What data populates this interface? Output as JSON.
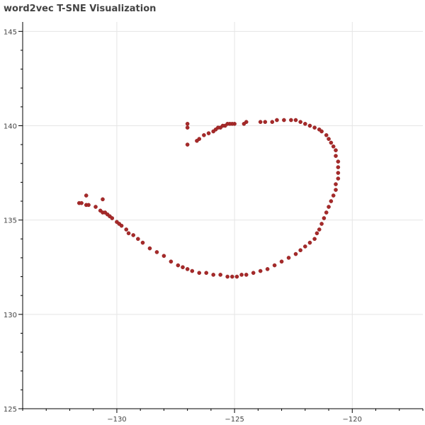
{
  "chart_data": {
    "type": "scatter",
    "title": "word2vec T-SNE Visualization",
    "xlabel": "",
    "ylabel": "",
    "xlim": [
      -134,
      -117
    ],
    "ylim": [
      125,
      145.5
    ],
    "x_ticks": [
      -130,
      -125,
      -120
    ],
    "y_ticks": [
      125,
      130,
      135,
      140,
      145
    ],
    "grid": true,
    "marker_color": "#a52a2a",
    "x": [
      -131.6,
      -131.5,
      -131.3,
      -131.2,
      -130.9,
      -130.7,
      -130.6,
      -130.5,
      -130.4,
      -130.3,
      -130.2,
      -130.0,
      -129.9,
      -129.8,
      -129.6,
      -129.5,
      -129.3,
      -129.1,
      -128.9,
      -128.6,
      -128.3,
      -128.0,
      -127.7,
      -127.4,
      -127.2,
      -127.0,
      -126.8,
      -126.5,
      -126.2,
      -125.9,
      -125.6,
      -125.3,
      -125.1,
      -124.9,
      -124.7,
      -124.5,
      -124.2,
      -123.9,
      -123.6,
      -123.3,
      -123.0,
      -122.7,
      -122.4,
      -122.2,
      -122.0,
      -121.8,
      -121.6,
      -121.5,
      -121.4,
      -121.3,
      -121.2,
      -121.1,
      -121.0,
      -120.9,
      -120.8,
      -120.7,
      -120.7,
      -120.6,
      -120.6,
      -120.6,
      -120.6,
      -120.7,
      -120.7,
      -120.8,
      -120.9,
      -121.0,
      -121.1,
      -121.3,
      -121.4,
      -121.6,
      -121.8,
      -122.0,
      -122.2,
      -122.4,
      -122.6,
      -122.9,
      -123.2,
      -123.4,
      -123.7,
      -123.9,
      -124.5,
      -124.6,
      -125.0,
      -125.1,
      -125.2,
      -125.3,
      -125.4,
      -125.5,
      -125.6,
      -125.7,
      -125.8,
      -125.9,
      -126.1,
      -126.3,
      -126.5,
      -126.6,
      -127.0,
      -127.0,
      -127.0,
      -131.3,
      -130.6
    ],
    "y": [
      135.9,
      135.9,
      135.8,
      135.8,
      135.7,
      135.5,
      135.4,
      135.4,
      135.3,
      135.2,
      135.1,
      134.9,
      134.8,
      134.7,
      134.5,
      134.3,
      134.2,
      134.0,
      133.8,
      133.5,
      133.3,
      133.1,
      132.8,
      132.6,
      132.5,
      132.4,
      132.3,
      132.2,
      132.2,
      132.1,
      132.1,
      132.0,
      132.0,
      132.0,
      132.1,
      132.1,
      132.2,
      132.3,
      132.4,
      132.6,
      132.8,
      133.0,
      133.2,
      133.4,
      133.6,
      133.8,
      134.0,
      134.3,
      134.5,
      134.8,
      135.1,
      135.4,
      135.7,
      136.0,
      136.3,
      136.6,
      136.9,
      137.2,
      137.5,
      137.8,
      138.1,
      138.4,
      138.7,
      138.9,
      139.1,
      139.3,
      139.5,
      139.7,
      139.8,
      139.9,
      140.0,
      140.1,
      140.2,
      140.3,
      140.3,
      140.3,
      140.3,
      140.2,
      140.2,
      140.2,
      140.2,
      140.1,
      140.1,
      140.1,
      140.1,
      140.1,
      140.0,
      140.0,
      139.9,
      139.9,
      139.8,
      139.7,
      139.6,
      139.5,
      139.3,
      139.2,
      139.0,
      140.1,
      139.9,
      136.3,
      136.1
    ]
  }
}
